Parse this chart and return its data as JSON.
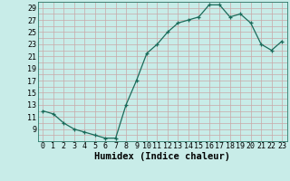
{
  "x": [
    0,
    1,
    2,
    3,
    4,
    5,
    6,
    7,
    8,
    9,
    10,
    11,
    12,
    13,
    14,
    15,
    16,
    17,
    18,
    19,
    20,
    21,
    22,
    23
  ],
  "y": [
    12,
    11.5,
    10,
    9,
    8.5,
    8,
    7.5,
    7.5,
    13,
    17,
    21.5,
    23,
    25,
    26.5,
    27,
    27.5,
    29.5,
    29.5,
    27.5,
    28,
    26.5,
    23,
    22,
    23.5
  ],
  "line_color": "#1a6b5a",
  "marker": "+",
  "bg_color": "#c8ece8",
  "grid_color_major": "#c8a8a8",
  "grid_color_minor": "#c8a8a8",
  "xlabel": "Humidex (Indice chaleur)",
  "xlim": [
    -0.5,
    23.5
  ],
  "ylim": [
    7,
    30
  ],
  "yticks": [
    9,
    11,
    13,
    15,
    17,
    19,
    21,
    23,
    25,
    27,
    29
  ],
  "xtick_labels": [
    "0",
    "1",
    "2",
    "3",
    "4",
    "5",
    "6",
    "7",
    "8",
    "9",
    "10",
    "11",
    "12",
    "13",
    "14",
    "15",
    "16",
    "17",
    "18",
    "19",
    "20",
    "21",
    "22",
    "23"
  ],
  "label_fontsize": 7.5,
  "tick_fontsize": 6
}
